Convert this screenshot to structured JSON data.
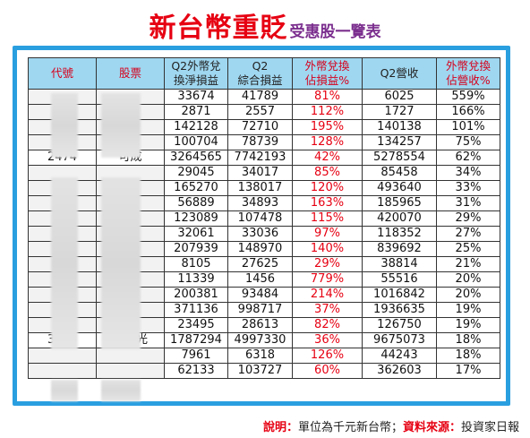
{
  "title": {
    "main": "新台幣重貶",
    "sub": "受惠股一覽表"
  },
  "table": {
    "headers": [
      {
        "line1": "代號",
        "line2": "",
        "red": true
      },
      {
        "line1": "股票",
        "line2": "",
        "red": true
      },
      {
        "line1": "Q2外幣兌",
        "line2": "換淨損益",
        "red": false
      },
      {
        "line1": "Q2",
        "line2": "綜合損益",
        "red": false
      },
      {
        "line1": "外幣兌換",
        "line2": "佔損益%",
        "red": true
      },
      {
        "line1": "Q2營收",
        "line2": "",
        "red": false
      },
      {
        "line1": "外幣兌換",
        "line2": "佔營收%",
        "red": true
      }
    ],
    "rows": [
      {
        "code": "",
        "name": "",
        "fx": "33674",
        "total": "41789",
        "fx_pct_profit": "81%",
        "revenue": "6025",
        "fx_pct_revenue": "559%"
      },
      {
        "code": "",
        "name": "",
        "fx": "2871",
        "total": "2557",
        "fx_pct_profit": "112%",
        "revenue": "1727",
        "fx_pct_revenue": "166%"
      },
      {
        "code": "",
        "name": "",
        "fx": "142128",
        "total": "72710",
        "fx_pct_profit": "195%",
        "revenue": "140138",
        "fx_pct_revenue": "101%"
      },
      {
        "code": "",
        "name": "",
        "fx": "100704",
        "total": "78739",
        "fx_pct_profit": "128%",
        "revenue": "134257",
        "fx_pct_revenue": "75%"
      },
      {
        "code": "2474",
        "name": "可成",
        "fx": "3264565",
        "total": "7742193",
        "fx_pct_profit": "42%",
        "revenue": "5278554",
        "fx_pct_revenue": "62%"
      },
      {
        "code": "",
        "name": "",
        "fx": "29045",
        "total": "34017",
        "fx_pct_profit": "85%",
        "revenue": "85458",
        "fx_pct_revenue": "34%"
      },
      {
        "code": "",
        "name": "",
        "fx": "165270",
        "total": "138017",
        "fx_pct_profit": "120%",
        "revenue": "493640",
        "fx_pct_revenue": "33%"
      },
      {
        "code": "",
        "name": "",
        "fx": "56889",
        "total": "34893",
        "fx_pct_profit": "163%",
        "revenue": "185965",
        "fx_pct_revenue": "31%"
      },
      {
        "code": "",
        "name": "",
        "fx": "123089",
        "total": "107478",
        "fx_pct_profit": "115%",
        "revenue": "420070",
        "fx_pct_revenue": "29%"
      },
      {
        "code": "",
        "name": "",
        "fx": "32061",
        "total": "33036",
        "fx_pct_profit": "97%",
        "revenue": "118352",
        "fx_pct_revenue": "27%"
      },
      {
        "code": "",
        "name": "",
        "fx": "207939",
        "total": "148970",
        "fx_pct_profit": "140%",
        "revenue": "839692",
        "fx_pct_revenue": "25%"
      },
      {
        "code": "",
        "name": "",
        "fx": "8105",
        "total": "27625",
        "fx_pct_profit": "29%",
        "revenue": "38814",
        "fx_pct_revenue": "21%"
      },
      {
        "code": "",
        "name": "",
        "fx": "11339",
        "total": "1456",
        "fx_pct_profit": "779%",
        "revenue": "55516",
        "fx_pct_revenue": "20%"
      },
      {
        "code": "",
        "name": "",
        "fx": "200381",
        "total": "93484",
        "fx_pct_profit": "214%",
        "revenue": "1016842",
        "fx_pct_revenue": "20%"
      },
      {
        "code": "",
        "name": "",
        "fx": "371136",
        "total": "998717",
        "fx_pct_profit": "37%",
        "revenue": "1936635",
        "fx_pct_revenue": "19%"
      },
      {
        "code": "",
        "name": "",
        "fx": "23495",
        "total": "28613",
        "fx_pct_profit": "82%",
        "revenue": "126750",
        "fx_pct_revenue": "19%"
      },
      {
        "code": "3008",
        "name": "大立光",
        "fx": "1787294",
        "total": "4997330",
        "fx_pct_profit": "36%",
        "revenue": "9675073",
        "fx_pct_revenue": "18%"
      },
      {
        "code": "",
        "name": "",
        "fx": "7961",
        "total": "6318",
        "fx_pct_profit": "126%",
        "revenue": "44243",
        "fx_pct_revenue": "18%"
      },
      {
        "code": "",
        "name": "",
        "fx": "62133",
        "total": "103727",
        "fx_pct_profit": "60%",
        "revenue": "362603",
        "fx_pct_revenue": "17%"
      }
    ]
  },
  "footnote": {
    "note_label": "說明：",
    "note_text": "單位為千元新台幣；",
    "source_label": "資料來源：",
    "source_text": "投資家日報"
  }
}
